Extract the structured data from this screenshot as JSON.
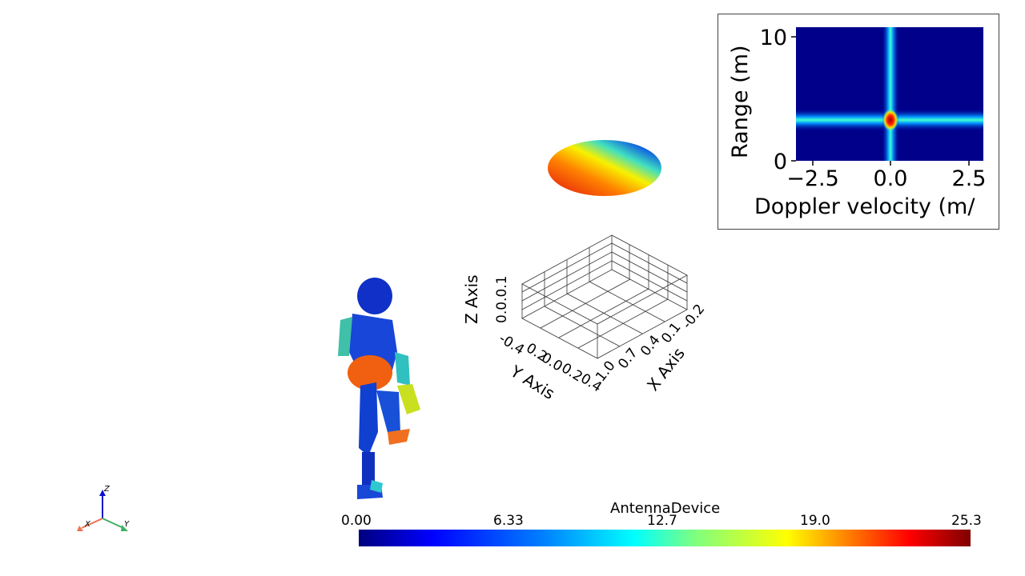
{
  "axes3d": {
    "z_title": "Z Axis",
    "y_title": "Y Axis",
    "x_title": "X Axis",
    "z_ticks": "0.0.0.1",
    "y_ticks": [
      "-0.4",
      "0.2",
      "0.0",
      "0.2",
      "0.4"
    ],
    "x_ticks": [
      "1.0",
      "0.7",
      "0.4",
      "0.1",
      "-0.2"
    ]
  },
  "orientation": {
    "z": "Z",
    "x": "X",
    "y": "Y"
  },
  "inset": {
    "ylabel": "Range (m)",
    "xlabel": "Doppler velocity (m/",
    "yticks": [
      "10",
      "0"
    ],
    "xticks": [
      "−2.5",
      "0.0",
      "2.5"
    ]
  },
  "colorbar": {
    "title": "AntennaDevice",
    "ticks": [
      "0.00",
      "6.33",
      "12.7",
      "19.0",
      "25.3"
    ]
  }
}
